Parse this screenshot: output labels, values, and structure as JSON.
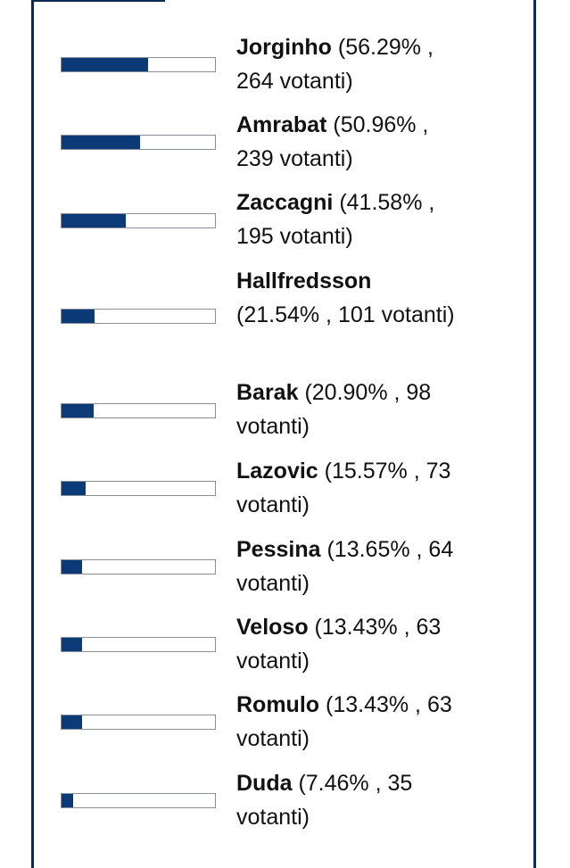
{
  "poll": {
    "results": [
      {
        "name": "Jorginho",
        "percent": 56.29,
        "stats": "(56.29% , 264 votanti)"
      },
      {
        "name": "Amrabat",
        "percent": 50.96,
        "stats": "(50.96% , 239 votanti)"
      },
      {
        "name": "Zaccagni",
        "percent": 41.58,
        "stats": "(41.58% , 195 votanti)"
      },
      {
        "name": "Hallfredsson",
        "percent": 21.54,
        "stats": "(21.54% , 101 votanti)"
      },
      {
        "name": "Barak",
        "percent": 20.9,
        "stats": "(20.90% , 98 votanti)"
      },
      {
        "name": "Lazovic",
        "percent": 15.57,
        "stats": "(15.57% , 73 votanti)"
      },
      {
        "name": "Pessina",
        "percent": 13.65,
        "stats": "(13.65% , 64 votanti)"
      },
      {
        "name": "Veloso",
        "percent": 13.43,
        "stats": "(13.43% , 63 votanti)"
      },
      {
        "name": "Romulo",
        "percent": 13.43,
        "stats": "(13.43% , 63 votanti)"
      },
      {
        "name": "Duda",
        "percent": 7.46,
        "stats": "(7.46% , 35 votanti)"
      }
    ]
  },
  "colors": {
    "bar_fill": "#0c3a77",
    "frame": "#0d2a55"
  }
}
